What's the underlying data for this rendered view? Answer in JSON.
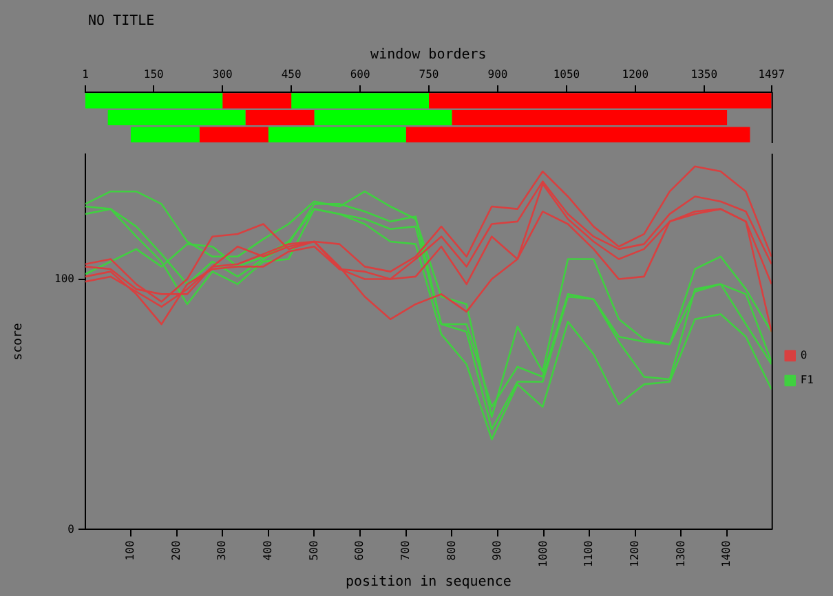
{
  "chart_data": [
    {
      "type": "bar",
      "title": "NO TITLE",
      "orientation": "horizontal",
      "categories": [
        null,
        null,
        null
      ],
      "xlabel": "window borders",
      "xlim": [
        1,
        1497
      ],
      "xticks": [
        1,
        150,
        300,
        450,
        600,
        750,
        900,
        1050,
        1200,
        1350,
        1497
      ],
      "tick_labels": "x",
      "grid": false,
      "legend": false,
      "stacked": true,
      "series": [
        {
          "color": "#00ff00",
          "base": [
            1,
            50,
            100
          ],
          "values": [
            299,
            300,
            150
          ]
        },
        {
          "color": "#ff0000",
          "values": [
            150,
            150,
            150
          ]
        },
        {
          "color": "#00ff00",
          "values": [
            300,
            300,
            300
          ]
        },
        {
          "color": "#ff0000",
          "values": [
            747,
            600,
            750
          ]
        }
      ]
    },
    {
      "type": "line",
      "xlabel": "position in sequence",
      "ylabel": "score",
      "x": [
        1,
        56,
        112,
        167,
        223,
        278,
        333,
        389,
        444,
        500,
        555,
        610,
        666,
        721,
        777,
        832,
        887,
        943,
        998,
        1053,
        1109,
        1164,
        1219,
        1275,
        1330,
        1386,
        1441,
        1497
      ],
      "xlim": [
        1,
        1497
      ],
      "xticks": [
        100,
        200,
        300,
        400,
        500,
        600,
        700,
        800,
        900,
        1000,
        1100,
        1200,
        1300,
        1400
      ],
      "ylim": [
        0,
        150
      ],
      "yticks": [
        0,
        100
      ],
      "grid": false,
      "legend": "right",
      "marker": "none",
      "series": [
        {
          "name": "0",
          "color": "#d84040",
          "values": [
            106,
            108,
            98,
            91,
            100,
            117,
            118,
            122,
            112,
            115,
            114,
            105,
            103,
            109,
            121,
            109,
            129,
            128,
            143,
            133,
            121,
            113,
            118,
            135,
            145,
            143,
            135,
            109
          ]
        },
        {
          "color": "#d84040",
          "values": [
            105,
            104,
            96,
            94,
            94,
            105,
            113,
            109,
            113,
            115,
            104,
            100,
            100,
            108,
            117,
            105,
            122,
            123,
            139,
            126,
            117,
            112,
            114,
            126,
            133,
            131,
            127,
            106
          ]
        },
        {
          "color": "#d84040",
          "values": [
            101,
            103,
            94,
            82,
            98,
            104,
            105,
            105,
            111,
            113,
            104,
            103,
            100,
            101,
            113,
            98,
            117,
            108,
            138,
            124,
            115,
            108,
            112,
            123,
            127,
            128,
            123,
            98
          ]
        },
        {
          "color": "#d84040",
          "values": [
            99,
            101,
            95,
            89,
            96,
            105,
            106,
            110,
            114,
            115,
            105,
            93,
            84,
            90,
            94,
            87,
            100,
            108,
            127,
            122,
            112,
            100,
            101,
            123,
            126,
            128,
            123,
            79
          ]
        },
        {
          "name": "F1",
          "color": "#40d040",
          "values": [
            130,
            135,
            135,
            130,
            115,
            109,
            109,
            116,
            122,
            131,
            129,
            135,
            129,
            124,
            93,
            90,
            45,
            81,
            63,
            108,
            108,
            84,
            76,
            74,
            104,
            109,
            96,
            79
          ]
        },
        {
          "color": "#40d040",
          "values": [
            129,
            128,
            121,
            110,
            98,
            107,
            101,
            108,
            114,
            130,
            130,
            127,
            123,
            125,
            82,
            82,
            49,
            65,
            61,
            94,
            92,
            77,
            75,
            74,
            95,
            98,
            94,
            67
          ]
        },
        {
          "color": "#40d040",
          "values": [
            126,
            128,
            117,
            107,
            90,
            103,
            98,
            107,
            108,
            128,
            126,
            124,
            120,
            121,
            82,
            79,
            40,
            59,
            59,
            93,
            92,
            75,
            61,
            60,
            96,
            98,
            82,
            66
          ]
        },
        {
          "color": "#40d040",
          "values": [
            102,
            107,
            112,
            105,
            114,
            113,
            105,
            109,
            115,
            128,
            126,
            122,
            115,
            114,
            78,
            66,
            36,
            58,
            49,
            83,
            70,
            50,
            58,
            59,
            84,
            86,
            77,
            56
          ]
        }
      ]
    }
  ]
}
